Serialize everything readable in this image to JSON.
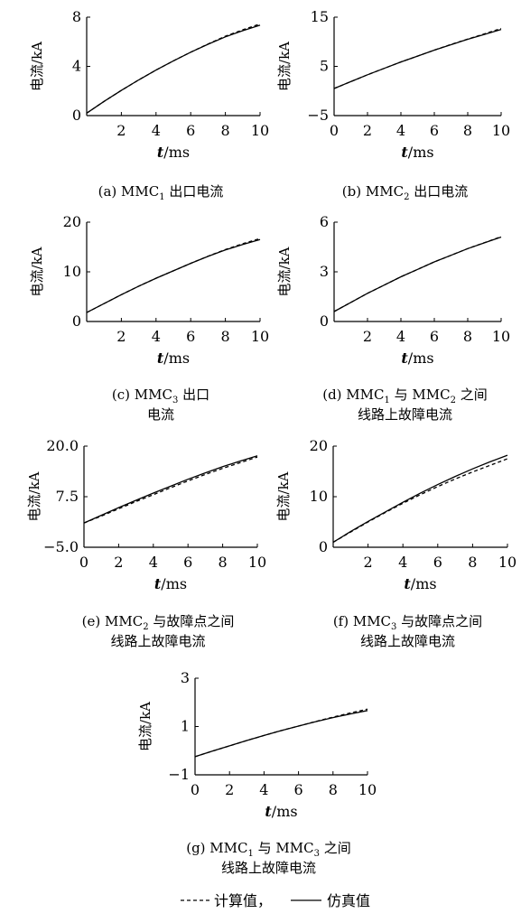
{
  "chart_data": [
    {
      "id": "a",
      "type": "line",
      "caption_lines": [
        [
          "(a) MMC",
          "1",
          " 出口电流"
        ]
      ],
      "ylabel": "电流/kA",
      "xlabel_italic": "t",
      "xlabel_unit": "/ms",
      "xlim": [
        0,
        10
      ],
      "ylim": [
        0,
        8
      ],
      "xticks": [
        2,
        4,
        6,
        8,
        10
      ],
      "yticks": [
        0,
        4,
        8
      ],
      "series": [
        {
          "style": "solid",
          "x": [
            0,
            1,
            2,
            3,
            4,
            5,
            6,
            7,
            8,
            9,
            10
          ],
          "y": [
            0.2,
            1.15,
            2.05,
            2.9,
            3.7,
            4.45,
            5.15,
            5.8,
            6.4,
            6.9,
            7.35
          ]
        },
        {
          "style": "dashed",
          "x": [
            0,
            1,
            2,
            3,
            4,
            5,
            6,
            7,
            8,
            9,
            10
          ],
          "y": [
            0.2,
            1.15,
            2.05,
            2.9,
            3.7,
            4.45,
            5.15,
            5.82,
            6.45,
            6.97,
            7.45
          ]
        }
      ]
    },
    {
      "id": "b",
      "type": "line",
      "caption_lines": [
        [
          "(b) MMC",
          "2",
          " 出口电流"
        ]
      ],
      "ylabel": "电流/kA",
      "xlabel_italic": "t",
      "xlabel_unit": "/ms",
      "xlim": [
        0,
        10
      ],
      "ylim": [
        -5,
        15
      ],
      "xticks": [
        0,
        2,
        4,
        6,
        8,
        10
      ],
      "yticks": [
        -5,
        5,
        15
      ],
      "series": [
        {
          "style": "solid",
          "x": [
            0,
            1,
            2,
            3,
            4,
            5,
            6,
            7,
            8,
            9,
            10
          ],
          "y": [
            0.5,
            1.9,
            3.3,
            4.6,
            5.9,
            7.1,
            8.3,
            9.4,
            10.5,
            11.5,
            12.5
          ]
        },
        {
          "style": "dashed",
          "x": [
            0,
            1,
            2,
            3,
            4,
            5,
            6,
            7,
            8,
            9,
            10
          ],
          "y": [
            0.5,
            1.9,
            3.3,
            4.6,
            5.9,
            7.1,
            8.3,
            9.45,
            10.55,
            11.6,
            12.7
          ]
        }
      ]
    },
    {
      "id": "c",
      "type": "line",
      "caption_lines": [
        [
          "(c) MMC",
          "3",
          " 出口"
        ],
        [
          "电流"
        ]
      ],
      "ylabel": "电流/kA",
      "xlabel_italic": "t",
      "xlabel_unit": "/ms",
      "xlim": [
        0,
        10
      ],
      "ylim": [
        0,
        20
      ],
      "xticks": [
        2,
        4,
        6,
        8,
        10
      ],
      "yticks": [
        0,
        10,
        20
      ],
      "series": [
        {
          "style": "solid",
          "x": [
            0,
            1,
            2,
            3,
            4,
            5,
            6,
            7,
            8,
            9,
            10
          ],
          "y": [
            1.8,
            3.6,
            5.4,
            7.1,
            8.7,
            10.2,
            11.7,
            13.1,
            14.4,
            15.5,
            16.5
          ]
        },
        {
          "style": "dashed",
          "x": [
            0,
            1,
            2,
            3,
            4,
            5,
            6,
            7,
            8,
            9,
            10
          ],
          "y": [
            1.8,
            3.6,
            5.4,
            7.1,
            8.7,
            10.2,
            11.7,
            13.15,
            14.5,
            15.65,
            16.7
          ]
        }
      ]
    },
    {
      "id": "d",
      "type": "line",
      "caption_lines": [
        [
          "(d) MMC",
          "1",
          " 与 MMC",
          "2",
          " 之间"
        ],
        [
          "线路上故障电流"
        ]
      ],
      "ylabel": "电流/kA",
      "xlabel_italic": "t",
      "xlabel_unit": "/ms",
      "xlim": [
        0,
        10
      ],
      "ylim": [
        0,
        6
      ],
      "xticks": [
        2,
        4,
        6,
        8,
        10
      ],
      "yticks": [
        0,
        3,
        6
      ],
      "series": [
        {
          "style": "solid",
          "x": [
            0,
            1,
            2,
            3,
            4,
            5,
            6,
            7,
            8,
            9,
            10
          ],
          "y": [
            0.6,
            1.15,
            1.7,
            2.2,
            2.7,
            3.15,
            3.6,
            4.0,
            4.4,
            4.75,
            5.1
          ]
        },
        {
          "style": "dashed",
          "x": [
            0,
            1,
            2,
            3,
            4,
            5,
            6,
            7,
            8,
            9,
            10
          ],
          "y": [
            0.6,
            1.15,
            1.7,
            2.2,
            2.7,
            3.15,
            3.6,
            4.0,
            4.4,
            4.76,
            5.12
          ]
        }
      ]
    },
    {
      "id": "e",
      "type": "line",
      "caption_lines": [
        [
          "(e) MMC",
          "2",
          " 与故障点之间"
        ],
        [
          "线路上故障电流"
        ]
      ],
      "ylabel": "电流/kA",
      "xlabel_italic": "t",
      "xlabel_unit": "/ms",
      "xlim": [
        0,
        10
      ],
      "ylim": [
        -5,
        20
      ],
      "ytick_labels": [
        "-5.0",
        "7.5",
        "20.0"
      ],
      "xticks": [
        0,
        2,
        4,
        6,
        8,
        10
      ],
      "yticks": [
        -5,
        7.5,
        20
      ],
      "series": [
        {
          "style": "solid",
          "x": [
            0,
            1,
            2,
            3,
            4,
            5,
            6,
            7,
            8,
            9,
            10
          ],
          "y": [
            1.0,
            2.9,
            4.8,
            6.6,
            8.4,
            10.1,
            11.8,
            13.4,
            14.9,
            16.3,
            17.6
          ]
        },
        {
          "style": "dashed",
          "x": [
            0,
            1,
            2,
            3,
            4,
            5,
            6,
            7,
            8,
            9,
            10
          ],
          "y": [
            1.0,
            2.7,
            4.5,
            6.3,
            8.0,
            9.7,
            11.4,
            13.0,
            14.5,
            15.9,
            17.3
          ]
        }
      ]
    },
    {
      "id": "f",
      "type": "line",
      "caption_lines": [
        [
          "(f) MMC",
          "3",
          " 与故障点之间"
        ],
        [
          "线路上故障电流"
        ]
      ],
      "ylabel": "电流/kA",
      "xlabel_italic": "t",
      "xlabel_unit": "/ms",
      "xlim": [
        0,
        10
      ],
      "ylim": [
        0,
        20
      ],
      "xticks": [
        2,
        4,
        6,
        8,
        10
      ],
      "yticks": [
        0,
        10,
        20
      ],
      "series": [
        {
          "style": "solid",
          "x": [
            0,
            1,
            2,
            3,
            4,
            5,
            6,
            7,
            8,
            9,
            10
          ],
          "y": [
            1.0,
            3.1,
            5.1,
            7.0,
            8.9,
            10.7,
            12.4,
            14.0,
            15.5,
            16.9,
            18.2
          ]
        },
        {
          "style": "dashed",
          "x": [
            0,
            1,
            2,
            3,
            4,
            5,
            6,
            7,
            8,
            9,
            10
          ],
          "y": [
            1.0,
            3.0,
            5.0,
            6.9,
            8.7,
            10.4,
            12.0,
            13.5,
            14.9,
            16.2,
            17.5
          ]
        }
      ]
    },
    {
      "id": "g",
      "type": "line",
      "caption_lines": [
        [
          "(g) MMC",
          "1",
          " 与 MMC",
          "3",
          " 之间"
        ],
        [
          "线路上故障电流"
        ]
      ],
      "ylabel": "电流/kA",
      "xlabel_italic": "t",
      "xlabel_unit": "/ms",
      "xlim": [
        0,
        10
      ],
      "ylim": [
        -1,
        3
      ],
      "xticks": [
        0,
        2,
        4,
        6,
        8,
        10
      ],
      "yticks": [
        -1,
        1,
        3
      ],
      "series": [
        {
          "style": "solid",
          "x": [
            0,
            1,
            2,
            3,
            4,
            5,
            6,
            7,
            8,
            9,
            10
          ],
          "y": [
            -0.25,
            -0.02,
            0.2,
            0.42,
            0.63,
            0.83,
            1.02,
            1.2,
            1.37,
            1.52,
            1.66
          ]
        },
        {
          "style": "dashed",
          "x": [
            0,
            1,
            2,
            3,
            4,
            5,
            6,
            7,
            8,
            9,
            10
          ],
          "y": [
            -0.25,
            -0.02,
            0.2,
            0.42,
            0.63,
            0.83,
            1.02,
            1.21,
            1.39,
            1.56,
            1.72
          ]
        }
      ]
    }
  ],
  "legend": {
    "calc_label": "计算值，",
    "sim_label": "仿真值"
  }
}
